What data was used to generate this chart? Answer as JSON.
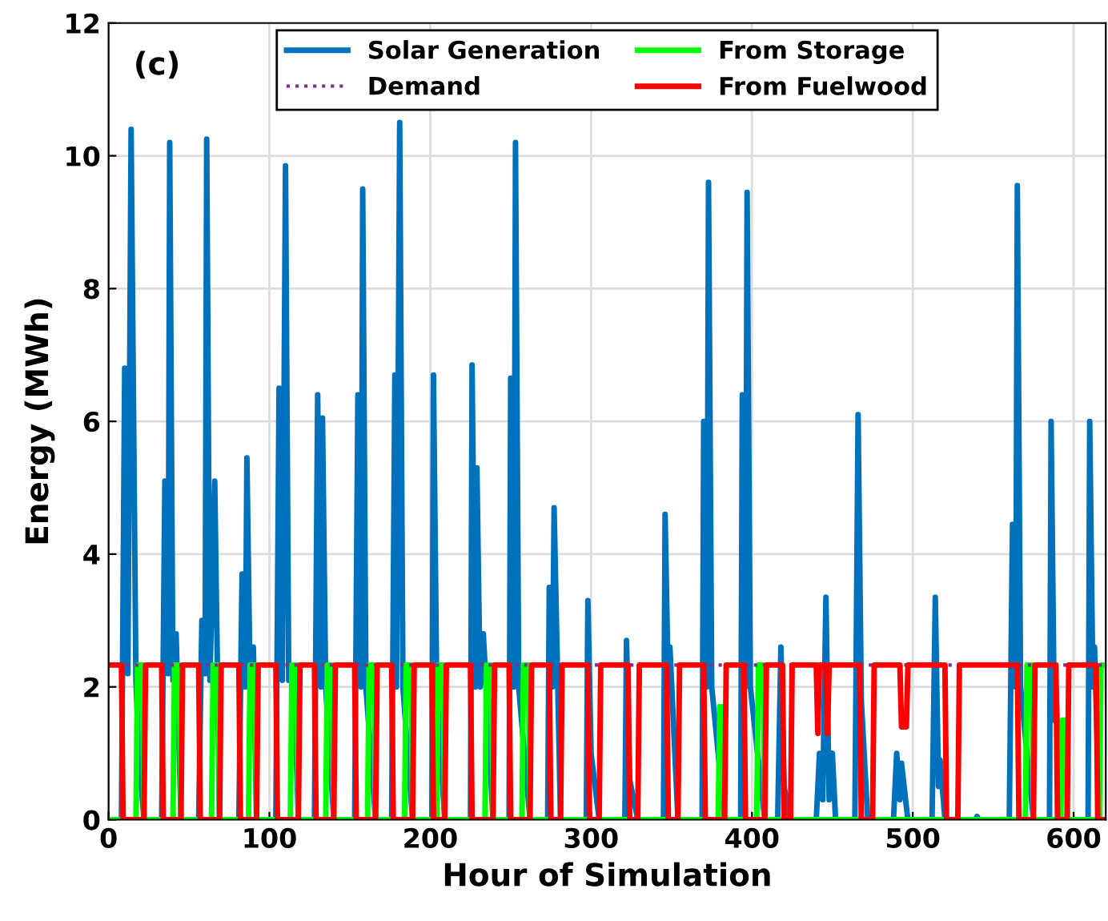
{
  "chart_data": {
    "type": "line",
    "xlabel": "Hour of Simulation",
    "ylabel": "Energy (MWh)",
    "annotations": [
      "(c)"
    ],
    "xlim": [
      0,
      620
    ],
    "ylim": [
      0,
      12
    ],
    "xticks": [
      0,
      100,
      200,
      300,
      400,
      500,
      600
    ],
    "yticks": [
      0,
      2,
      4,
      6,
      8,
      10,
      12
    ],
    "grid": true,
    "legend": "top",
    "line_style": "solid",
    "marker": "none",
    "series": [
      {
        "name": "Solar Generation",
        "color": "#0072bd",
        "x": [
          0,
          8,
          10,
          12,
          14,
          17,
          19,
          22,
          33,
          35,
          37,
          38,
          40,
          42,
          45,
          56,
          58,
          60,
          61,
          63,
          66,
          69,
          81,
          83,
          85,
          86,
          88,
          90,
          92,
          104,
          106,
          108,
          110,
          112,
          115,
          118,
          128,
          130,
          132,
          133,
          135,
          140,
          153,
          155,
          157,
          158,
          160,
          166,
          176,
          178,
          179,
          181,
          183,
          189,
          201,
          202,
          204,
          209,
          225,
          226,
          228,
          229,
          231,
          233,
          239,
          249,
          250,
          252,
          253,
          255,
          262,
          273,
          274,
          276,
          277,
          281,
          297,
          298,
          300,
          305,
          321,
          322,
          324,
          329,
          345,
          346,
          348,
          349,
          354,
          369,
          370,
          372,
          373,
          375,
          383,
          393,
          394,
          396,
          397,
          399,
          408,
          416,
          418,
          420,
          424,
          440,
          442,
          444,
          446,
          448,
          450,
          452,
          464,
          466,
          468,
          472,
          488,
          490,
          492,
          493,
          496,
          497,
          512,
          514,
          516,
          517,
          520,
          539,
          540,
          541,
          560,
          562,
          564,
          565,
          567,
          575,
          585,
          586,
          588,
          589,
          592,
          609,
          610,
          612,
          613,
          616,
          620
        ],
        "values": [
          0,
          0,
          6.8,
          2.2,
          10.4,
          2.1,
          0.9,
          0,
          0,
          5.1,
          2.2,
          10.2,
          2.1,
          2.8,
          0,
          0,
          3,
          2.2,
          10.25,
          2.1,
          5.1,
          0,
          0,
          3.7,
          2,
          5.45,
          2,
          2.6,
          0,
          0,
          6.5,
          2.1,
          9.85,
          2.1,
          2.3,
          0,
          0,
          6.4,
          2,
          6.05,
          2,
          0,
          0,
          6.4,
          2,
          9.5,
          2,
          0,
          0,
          6.7,
          2,
          10.5,
          2,
          0,
          0,
          6.7,
          2,
          0,
          0,
          6.85,
          2,
          5.3,
          2,
          2.8,
          0,
          0,
          6.65,
          2,
          10.2,
          2,
          0,
          0,
          3.5,
          2,
          4.7,
          0,
          0,
          3.3,
          1,
          0,
          0,
          2.7,
          0.6,
          0,
          0,
          4.6,
          2,
          2.6,
          0,
          0,
          6,
          2,
          9.6,
          2,
          0,
          0,
          6.4,
          2,
          9.45,
          2,
          0,
          0,
          2.6,
          0.5,
          0,
          0,
          1,
          0.3,
          3.35,
          0.3,
          1,
          0,
          0,
          6.1,
          1.8,
          0,
          0,
          1,
          0.3,
          0.85,
          0.2,
          0,
          0,
          3.35,
          0.5,
          0.9,
          0,
          0,
          0.05,
          0,
          0,
          4.45,
          2,
          9.55,
          2,
          0,
          0,
          6,
          1.5,
          2,
          0,
          0,
          6,
          2,
          2.6,
          0,
          0
        ]
      },
      {
        "name": "From Storage",
        "color": "#00ff00",
        "x": [
          0,
          17,
          18,
          21,
          22,
          40,
          41,
          44,
          45,
          64,
          65,
          68,
          69,
          87,
          88,
          91,
          92,
          113,
          114,
          117,
          118,
          135,
          136,
          139,
          140,
          161,
          162,
          165,
          166,
          184,
          185,
          188,
          189,
          204,
          205,
          208,
          209,
          234,
          235,
          238,
          239,
          257,
          258,
          261,
          262,
          379,
          380,
          382,
          383,
          403,
          404,
          407,
          408,
          570,
          571,
          574,
          575,
          592,
          593,
          595,
          596,
          616,
          617,
          620
        ],
        "values": [
          0,
          0,
          2.33,
          2.33,
          0,
          0,
          2.33,
          2.33,
          0,
          0,
          2.33,
          2.33,
          0,
          0,
          2.33,
          2.33,
          0,
          0,
          2.33,
          2.33,
          0,
          0,
          2.33,
          2.33,
          0,
          0,
          2.33,
          2.33,
          0,
          0,
          2.33,
          2.33,
          0,
          0,
          2.33,
          2.33,
          0,
          0,
          2.33,
          2.33,
          0,
          0,
          2.33,
          2.33,
          0,
          0,
          1.7,
          1.7,
          0,
          0,
          2.33,
          2.33,
          0,
          0,
          2.33,
          2.33,
          0,
          0,
          1.5,
          1.5,
          0,
          0,
          2.33,
          2.33
        ]
      },
      {
        "name": "Demand",
        "color": "#7e2f8e",
        "line_style": "dotted",
        "x": [
          0,
          620
        ],
        "values": [
          2.33,
          2.33
        ]
      },
      {
        "name": "From Fuelwood",
        "color": "#ff0000",
        "x": [
          0,
          8,
          9,
          22,
          23,
          33,
          34,
          45,
          46,
          56,
          57,
          69,
          70,
          81,
          82,
          92,
          93,
          104,
          105,
          118,
          119,
          128,
          129,
          140,
          141,
          153,
          154,
          166,
          167,
          176,
          177,
          189,
          190,
          201,
          202,
          209,
          210,
          225,
          226,
          239,
          240,
          249,
          250,
          262,
          263,
          274,
          275,
          281,
          282,
          298,
          299,
          305,
          306,
          323,
          324,
          329,
          330,
          347,
          348,
          354,
          355,
          370,
          371,
          383,
          384,
          395,
          396,
          408,
          409,
          419,
          420,
          424,
          425,
          440,
          441,
          442,
          446,
          447,
          448,
          467,
          468,
          475,
          476,
          492,
          493,
          496,
          497,
          520,
          521,
          528,
          529,
          565,
          566,
          575,
          576,
          589,
          590,
          596,
          597,
          614,
          615,
          620
        ],
        "values": [
          2.33,
          2.33,
          0,
          0,
          2.33,
          2.33,
          0,
          0,
          2.33,
          2.33,
          0,
          0,
          2.33,
          2.33,
          0,
          0,
          2.33,
          2.33,
          0,
          0,
          2.33,
          2.33,
          0,
          0,
          2.33,
          2.33,
          0,
          0,
          2.33,
          2.33,
          0,
          0,
          2.33,
          2.33,
          0,
          0,
          2.33,
          2.33,
          0,
          0,
          2.33,
          2.33,
          0,
          0,
          2.33,
          2.33,
          0,
          0,
          2.33,
          2.33,
          0,
          0,
          2.33,
          2.33,
          0,
          0,
          2.33,
          2.33,
          0,
          0,
          2.33,
          2.33,
          0,
          0,
          2.33,
          2.33,
          0,
          0,
          2.33,
          2.33,
          0,
          0,
          2.33,
          2.33,
          1.3,
          2.33,
          2.33,
          1.3,
          2.33,
          2.33,
          0,
          0,
          2.33,
          2.33,
          1.4,
          1.4,
          2.33,
          2.33,
          0,
          0,
          2.33,
          2.33,
          0,
          0,
          2.33,
          2.33,
          0,
          0,
          2.33,
          2.33,
          0,
          0
        ]
      }
    ]
  }
}
